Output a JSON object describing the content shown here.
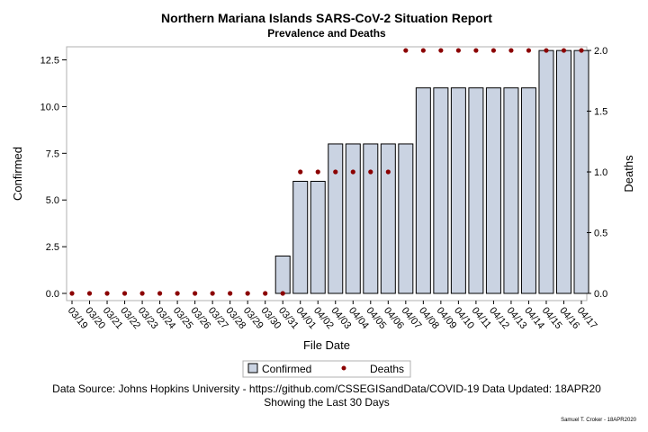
{
  "chart_data": {
    "type": "bar",
    "title": "Northern Mariana Islands SARS-CoV-2 Situation Report",
    "subtitle": "Prevalence and Deaths",
    "xlabel": "File Date",
    "ylabel": "Confirmed",
    "y2label": "Deaths",
    "categories": [
      "03/19",
      "03/20",
      "03/21",
      "03/22",
      "03/23",
      "03/24",
      "03/25",
      "03/26",
      "03/27",
      "03/28",
      "03/29",
      "03/30",
      "03/31",
      "04/01",
      "04/02",
      "04/03",
      "04/04",
      "04/05",
      "04/06",
      "04/07",
      "04/08",
      "04/09",
      "04/10",
      "04/11",
      "04/12",
      "04/13",
      "04/14",
      "04/15",
      "04/16",
      "04/17"
    ],
    "series": [
      {
        "name": "Confirmed",
        "kind": "bar",
        "axis": "left",
        "color": "#cad3e2",
        "values": [
          0,
          0,
          0,
          0,
          0,
          0,
          0,
          0,
          0,
          0,
          0,
          0,
          2,
          6,
          6,
          8,
          8,
          8,
          8,
          8,
          11,
          11,
          11,
          11,
          11,
          11,
          11,
          13,
          13,
          13
        ]
      },
      {
        "name": "Deaths",
        "kind": "scatter",
        "axis": "right",
        "color": "#8b0000",
        "values": [
          0,
          0,
          0,
          0,
          0,
          0,
          0,
          0,
          0,
          0,
          0,
          0,
          0,
          1,
          1,
          1,
          1,
          1,
          1,
          2,
          2,
          2,
          2,
          2,
          2,
          2,
          2,
          2,
          2,
          2
        ]
      }
    ],
    "ylim": [
      0,
      13.2
    ],
    "y2lim": [
      0,
      2.03
    ],
    "yticks": [
      "0.0",
      "2.5",
      "5.0",
      "7.5",
      "10.0",
      "12.5"
    ],
    "y2ticks": [
      "0.0",
      "0.5",
      "1.0",
      "1.5",
      "2.0"
    ],
    "grid": false,
    "legend_position": "bottom"
  },
  "footer": {
    "source": "Data Source: Johns Hopkins University - https://github.com/CSSEGISandData/COVID-19 Data Updated: 18APR20",
    "window": "Showing the Last 30 Days",
    "credit": "Samuel T. Croker - 18APR2020"
  }
}
